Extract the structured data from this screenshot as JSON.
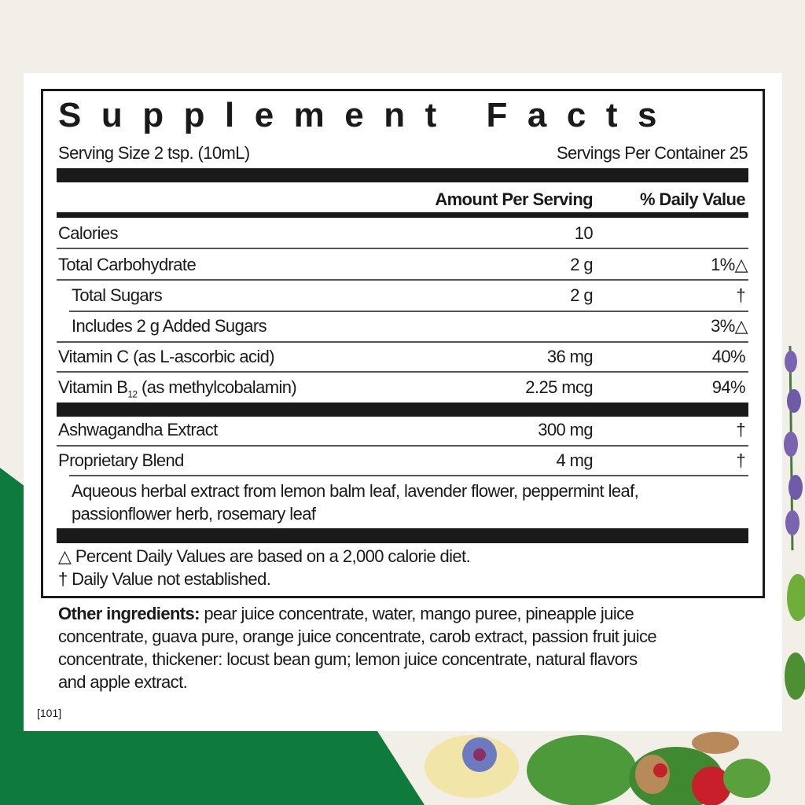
{
  "colors": {
    "background": "#f2efe8",
    "green": "#0e7a3b",
    "panel": "#ffffff",
    "ink": "#1a1a1a"
  },
  "label": {
    "title": "Supplement Facts",
    "serving_size": "Serving Size 2 tsp. (10mL)",
    "servings_per_container": "Servings Per Container 25",
    "col_amount": "Amount Per Serving",
    "col_dv": "% Daily Value",
    "rows": [
      {
        "name": "Calories",
        "amount": "10",
        "dv": ""
      },
      {
        "name": "Total Carbohydrate",
        "amount": "2 g",
        "dv": "1%△"
      },
      {
        "name": "Total Sugars",
        "amount": "2 g",
        "dv": "†"
      },
      {
        "name": "Includes 2 g Added Sugars",
        "amount": "",
        "dv": "3%△"
      },
      {
        "name": "Vitamin C (as L-ascorbic acid)",
        "amount": "36 mg",
        "dv": "40%"
      },
      {
        "name_pre": "Vitamin B",
        "name_sub": "12",
        "name_post": " (as methylcobalamin)",
        "amount": "2.25 mcg",
        "dv": "94%"
      },
      {
        "name": "Ashwagandha Extract",
        "amount": "300 mg",
        "dv": "†"
      },
      {
        "name": "Proprietary Blend",
        "amount": "4 mg",
        "dv": "†"
      }
    ],
    "blend_line1": "Aqueous herbal extract from lemon balm leaf, lavender flower, peppermint leaf,",
    "blend_line2": "passionflower herb, rosemary leaf",
    "footnote1": "△ Percent Daily Values are based on a 2,000 calorie diet.",
    "footnote2": "†  Daily Value not established."
  },
  "other": {
    "label": "Other ingredients:",
    "line1": " pear juice concentrate, water, mango puree, pineapple juice",
    "line2": "concentrate, guava pure, orange juice concentrate, carob extract, passion fruit juice",
    "line3": "concentrate, thickener: locust bean gum; lemon juice concentrate, natural flavors",
    "line4": "and apple extract."
  },
  "code": "[101]"
}
